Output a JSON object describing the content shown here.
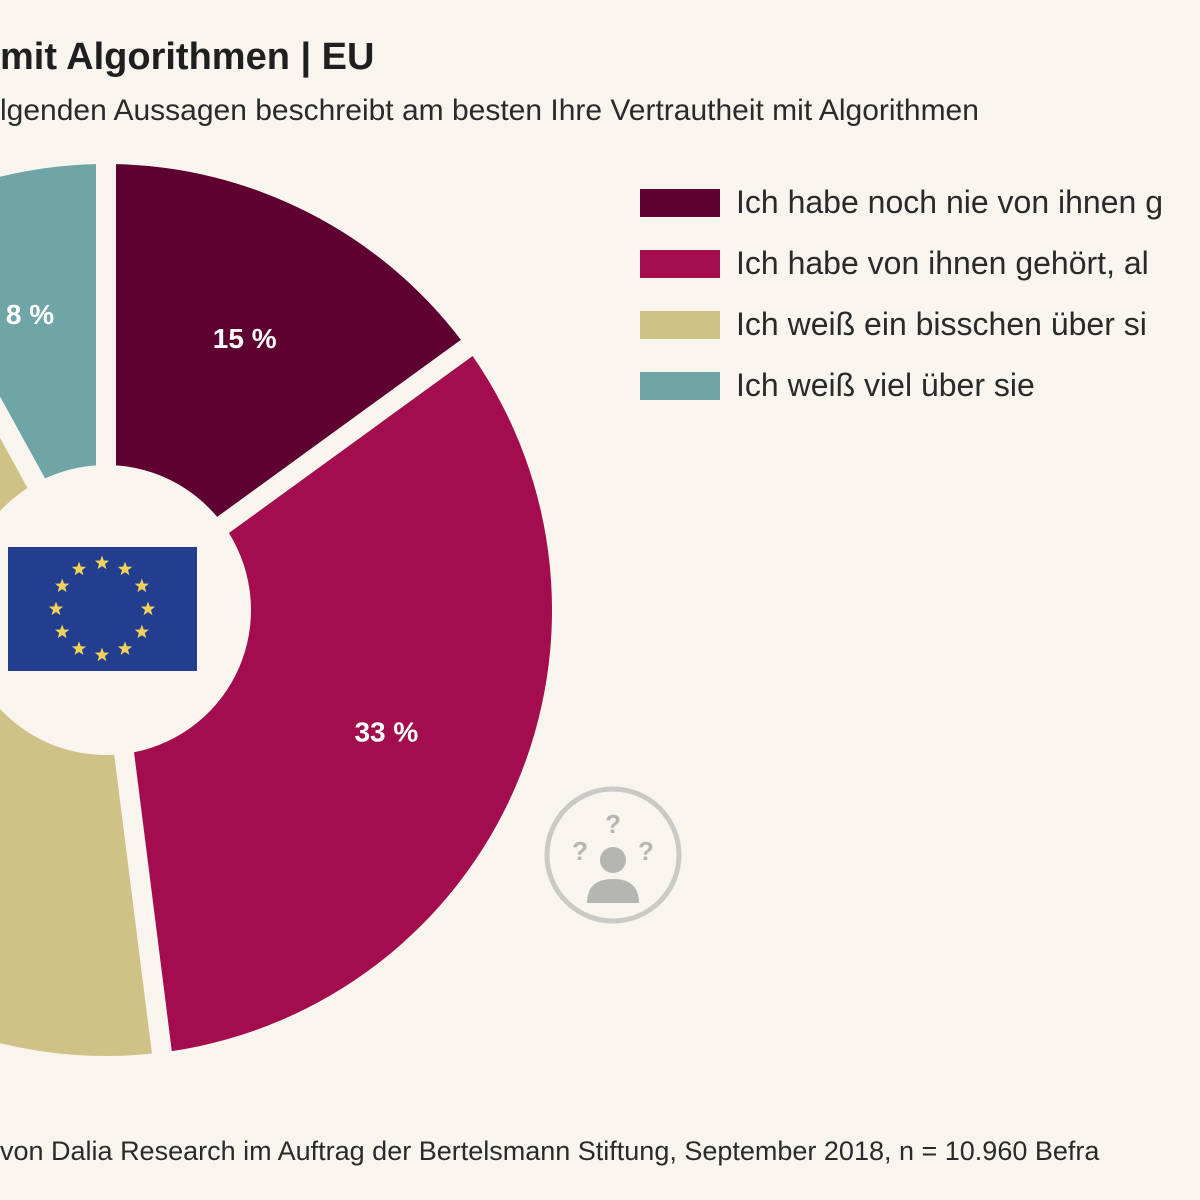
{
  "title": "mit Algorithmen | EU",
  "subtitle": "lgenden Aussagen beschreibt am besten Ihre Vertrautheit mit Algorithmen",
  "source": "von Dalia Research im Auftrag der Bertelsmann Stiftung, September 2018, n = 10.960 Befra",
  "icons": {
    "center": "eu-flag-icon",
    "corner": "confused-person-icon"
  },
  "chart_data": {
    "type": "pie",
    "labels": [
      "Ich habe noch nie von ihnen g",
      "Ich habe von ihnen gehört, al",
      "Ich weiß ein bisschen über si",
      "Ich weiß viel über sie"
    ],
    "values": [
      15,
      33,
      null,
      8
    ],
    "value_labels": [
      "15 %",
      "33 %",
      "",
      "8 %"
    ],
    "colors": [
      "#5e0030",
      "#a30d4e",
      "#cfc287",
      "#6fa5a7"
    ],
    "legend_position": "top-right"
  }
}
